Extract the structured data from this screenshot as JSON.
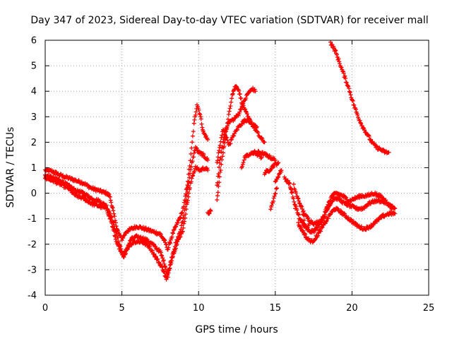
{
  "chart_data": {
    "type": "scatter",
    "title": "Day 347 of 2023, Sidereal Day-to-day VTEC variation (SDTVAR) for receiver mall",
    "xlabel": "GPS time / hours",
    "ylabel": "SDTVAR / TECUs",
    "xlim": [
      0,
      25
    ],
    "ylim": [
      -4,
      6
    ],
    "xticks": [
      0,
      5,
      10,
      15,
      20,
      25
    ],
    "yticks": [
      -4,
      -3,
      -2,
      -1,
      0,
      1,
      2,
      3,
      4,
      5,
      6
    ],
    "grid": true,
    "marker": "+",
    "series": [
      {
        "name": "SDTVAR",
        "color": "#ff0000",
        "tracks": [
          [
            [
              0,
              0.9
            ],
            [
              0.5,
              0.85
            ],
            [
              1,
              0.7
            ],
            [
              1.5,
              0.6
            ],
            [
              2,
              0.5
            ],
            [
              2.5,
              0.4
            ],
            [
              3,
              0.2
            ],
            [
              3.5,
              0.1
            ],
            [
              4,
              0
            ],
            [
              4.2,
              -0.1
            ],
            [
              4.4,
              -0.6
            ],
            [
              4.6,
              -1.2
            ],
            [
              4.8,
              -1.6
            ],
            [
              5,
              -1.8
            ],
            [
              5.3,
              -1.5
            ],
            [
              5.6,
              -1.4
            ],
            [
              6,
              -1.3
            ],
            [
              6.5,
              -1.4
            ],
            [
              7,
              -1.5
            ],
            [
              7.5,
              -1.6
            ],
            [
              7.8,
              -1.9
            ],
            [
              8,
              -2.2
            ],
            [
              8.3,
              -1.6
            ],
            [
              8.6,
              -1.2
            ],
            [
              8.9,
              -0.8
            ],
            [
              9.1,
              -0.3
            ],
            [
              9.3,
              0.5
            ],
            [
              9.5,
              1.5
            ],
            [
              9.7,
              2.7
            ],
            [
              9.9,
              3.5
            ],
            [
              10.1,
              3.1
            ],
            [
              10.3,
              2.4
            ],
            [
              10.6,
              2.1
            ]
          ],
          [
            [
              0,
              0.7
            ],
            [
              0.5,
              0.6
            ],
            [
              1,
              0.5
            ],
            [
              1.5,
              0.3
            ],
            [
              2,
              0.1
            ],
            [
              2.5,
              0
            ],
            [
              3,
              -0.2
            ],
            [
              3.5,
              -0.3
            ],
            [
              4,
              -0.5
            ],
            [
              4.3,
              -0.9
            ],
            [
              4.6,
              -1.5
            ],
            [
              4.9,
              -2.1
            ],
            [
              5.1,
              -2.5
            ],
            [
              5.3,
              -2.2
            ],
            [
              5.6,
              -1.8
            ],
            [
              6,
              -1.7
            ],
            [
              6.5,
              -1.8
            ],
            [
              7,
              -2
            ],
            [
              7.5,
              -2.3
            ],
            [
              7.8,
              -2.8
            ],
            [
              8,
              -3.3
            ],
            [
              8.2,
              -2.6
            ],
            [
              8.5,
              -2
            ],
            [
              8.8,
              -1.5
            ],
            [
              9,
              -1
            ],
            [
              9.2,
              -0.2
            ],
            [
              9.4,
              0.6
            ],
            [
              9.6,
              1.3
            ],
            [
              9.8,
              1.8
            ],
            [
              10,
              1.6
            ],
            [
              10.3,
              1.5
            ],
            [
              10.6,
              1.3
            ]
          ],
          [
            [
              0,
              0.6
            ],
            [
              0.5,
              0.5
            ],
            [
              1,
              0.35
            ],
            [
              1.5,
              0.2
            ],
            [
              2,
              -0.1
            ],
            [
              2.5,
              -0.2
            ],
            [
              3,
              -0.4
            ],
            [
              3.5,
              -0.5
            ],
            [
              4,
              -0.6
            ],
            [
              4.3,
              -1.1
            ],
            [
              4.6,
              -1.8
            ],
            [
              4.9,
              -2.3
            ],
            [
              5.1,
              -2.5
            ],
            [
              5.4,
              -2.1
            ],
            [
              5.8,
              -1.9
            ],
            [
              6.3,
              -1.9
            ],
            [
              6.8,
              -2.1
            ],
            [
              7.3,
              -2.6
            ],
            [
              7.7,
              -3
            ],
            [
              7.9,
              -3.4
            ],
            [
              8.1,
              -2.9
            ],
            [
              8.4,
              -2.3
            ],
            [
              8.7,
              -1.8
            ],
            [
              9,
              -1.4
            ],
            [
              9.2,
              -0.6
            ],
            [
              9.4,
              0.1
            ],
            [
              9.6,
              0.7
            ],
            [
              9.8,
              1
            ],
            [
              10.1,
              0.9
            ],
            [
              10.4,
              1
            ],
            [
              10.6,
              0.9
            ]
          ],
          [
            [
              10.6,
              -0.8
            ],
            [
              10.8,
              -0.7
            ]
          ],
          [
            [
              11.2,
              -0.3
            ],
            [
              11.4,
              0.8
            ],
            [
              11.6,
              1.6
            ],
            [
              11.8,
              2.4
            ],
            [
              12,
              3.2
            ],
            [
              12.2,
              3.9
            ],
            [
              12.4,
              4.2
            ],
            [
              12.6,
              4.1
            ],
            [
              12.8,
              3.6
            ],
            [
              13,
              3.3
            ],
            [
              13.2,
              3
            ],
            [
              13.5,
              2.7
            ],
            [
              13.8,
              2.4
            ],
            [
              14,
              2.2
            ],
            [
              14.3,
              2
            ]
          ],
          [
            [
              11.2,
              0.3
            ],
            [
              11.4,
              1.3
            ],
            [
              11.6,
              2
            ],
            [
              11.8,
              2.6
            ],
            [
              12,
              2.8
            ],
            [
              12.3,
              2.9
            ],
            [
              12.6,
              3.1
            ],
            [
              12.9,
              3.5
            ],
            [
              13.2,
              3.9
            ],
            [
              13.5,
              4.1
            ],
            [
              13.7,
              4
            ]
          ],
          [
            [
              11.2,
              1.2
            ],
            [
              11.4,
              1.9
            ],
            [
              11.6,
              2.5
            ],
            [
              11.8,
              2.2
            ],
            [
              12,
              1.9
            ],
            [
              12.3,
              2.3
            ],
            [
              12.6,
              2.6
            ],
            [
              12.9,
              2.8
            ],
            [
              13.2,
              2.9
            ],
            [
              13.5,
              2.7
            ],
            [
              13.8,
              2.6
            ]
          ],
          [
            [
              12.8,
              1
            ],
            [
              13,
              1.4
            ],
            [
              13.3,
              1.5
            ],
            [
              13.6,
              1.6
            ],
            [
              13.9,
              1.5
            ],
            [
              14.1,
              1.4
            ]
          ],
          [
            [
              13.5,
              1.6
            ],
            [
              14,
              1.6
            ],
            [
              14.4,
              1.5
            ],
            [
              14.7,
              1.4
            ],
            [
              15,
              1.3
            ]
          ],
          [
            [
              14.3,
              0.8
            ],
            [
              14.6,
              0.9
            ],
            [
              14.9,
              1.1
            ],
            [
              15.2,
              1.2
            ]
          ],
          [
            [
              15,
              0.4
            ],
            [
              15.2,
              0.7
            ],
            [
              15.4,
              0.9
            ]
          ],
          [
            [
              14.7,
              -0.6
            ],
            [
              14.9,
              -0.2
            ],
            [
              15.1,
              0.2
            ]
          ],
          [
            [
              15.6,
              0.6
            ],
            [
              15.9,
              0.4
            ],
            [
              16.1,
              0
            ],
            [
              16.3,
              -0.6
            ]
          ],
          [
            [
              16.2,
              0.3
            ],
            [
              16.4,
              -0.1
            ],
            [
              16.6,
              -0.4
            ],
            [
              16.8,
              -0.7
            ],
            [
              17,
              -0.9
            ],
            [
              17.3,
              -1.1
            ],
            [
              17.6,
              -1.2
            ],
            [
              17.9,
              -1.1
            ],
            [
              18.2,
              -0.9
            ],
            [
              18.5,
              -0.5
            ],
            [
              18.8,
              -0.2
            ],
            [
              19.1,
              -0.2
            ],
            [
              19.5,
              -0.4
            ],
            [
              19.9,
              -0.5
            ],
            [
              20.3,
              -0.6
            ],
            [
              20.7,
              -0.6
            ],
            [
              21.1,
              -0.4
            ],
            [
              21.5,
              -0.3
            ],
            [
              21.9,
              -0.3
            ],
            [
              22.3,
              -0.4
            ],
            [
              22.8,
              -0.6
            ]
          ],
          [
            [
              16.3,
              -0.5
            ],
            [
              16.6,
              -1
            ],
            [
              16.9,
              -1.3
            ],
            [
              17.2,
              -1.5
            ],
            [
              17.5,
              -1.5
            ],
            [
              17.8,
              -1.3
            ],
            [
              18.1,
              -1
            ],
            [
              18.4,
              -0.5
            ],
            [
              18.7,
              -0.1
            ],
            [
              19,
              0
            ],
            [
              19.4,
              -0.1
            ],
            [
              19.8,
              -0.3
            ],
            [
              20.2,
              -0.2
            ],
            [
              20.6,
              -0.1
            ],
            [
              21,
              -0.1
            ],
            [
              21.4,
              0
            ],
            [
              21.8,
              -0.1
            ],
            [
              22.2,
              -0.3
            ],
            [
              22.6,
              -0.6
            ]
          ],
          [
            [
              16.5,
              -1.2
            ],
            [
              16.8,
              -1.5
            ],
            [
              17.1,
              -1.8
            ],
            [
              17.4,
              -1.9
            ],
            [
              17.7,
              -1.7
            ],
            [
              18,
              -1.4
            ],
            [
              18.3,
              -1.1
            ],
            [
              18.6,
              -0.8
            ],
            [
              18.9,
              -0.6
            ],
            [
              19.2,
              -0.7
            ],
            [
              19.6,
              -0.9
            ],
            [
              20,
              -1.1
            ],
            [
              20.4,
              -1.3
            ],
            [
              20.8,
              -1.4
            ],
            [
              21.2,
              -1.3
            ],
            [
              21.6,
              -1.1
            ],
            [
              22,
              -0.9
            ],
            [
              22.4,
              -0.8
            ],
            [
              22.8,
              -0.8
            ]
          ],
          [
            [
              16.8,
              -0.8
            ],
            [
              17,
              -1.4
            ],
            [
              17.2,
              -1.2
            ]
          ],
          [
            [
              18.6,
              5.9
            ],
            [
              18.9,
              5.6
            ],
            [
              19.2,
              5.1
            ],
            [
              19.5,
              4.6
            ],
            [
              19.8,
              4.1
            ],
            [
              20.1,
              3.5
            ],
            [
              20.4,
              3
            ],
            [
              20.7,
              2.6
            ],
            [
              21,
              2.3
            ],
            [
              21.3,
              2
            ],
            [
              21.6,
              1.8
            ],
            [
              21.9,
              1.7
            ],
            [
              22.2,
              1.6
            ],
            [
              22.4,
              1.6
            ]
          ]
        ]
      }
    ]
  }
}
